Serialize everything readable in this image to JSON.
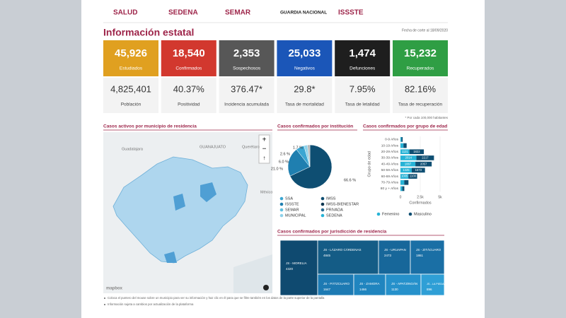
{
  "header": {
    "logos": [
      "SALUD",
      "SEDENA",
      "SEMAR",
      "GUARDIA NACIONAL",
      "ISSSTE"
    ]
  },
  "title": "Información estatal",
  "date": "Fecha de corte al 18/09/2020",
  "cards": [
    {
      "value": "45,926",
      "label": "Estudiados",
      "color": "#e0a020"
    },
    {
      "value": "18,540",
      "label": "Confirmados",
      "color": "#d2382e"
    },
    {
      "value": "2,353",
      "label": "Sospechosos",
      "color": "#575757"
    },
    {
      "value": "25,033",
      "label": "Negativos",
      "color": "#1b56b8"
    },
    {
      "value": "1,474",
      "label": "Defunciones",
      "color": "#1e1e1e"
    },
    {
      "value": "15,232",
      "label": "Recuperados",
      "color": "#2f9e44"
    }
  ],
  "stats": [
    {
      "value": "4,825,401",
      "label": "Población"
    },
    {
      "value": "40.37%",
      "label": "Positividad"
    },
    {
      "value": "376.47*",
      "label": "Incidencia acumulada"
    },
    {
      "value": "29.8*",
      "label": "Tasa de mortalidad"
    },
    {
      "value": "7.95%",
      "label": "Tasa de letalidad"
    },
    {
      "value": "82.16%",
      "label": "Tasa de recuperación"
    }
  ],
  "footnote": "* Por cada 100,000 habitantes",
  "map": {
    "title": "Casos activos por municipio de residencia",
    "places": [
      "Guadalajara",
      "GUANAJUATO",
      "Querétaro",
      "México"
    ],
    "attribution": "mapbox"
  },
  "institutions": {
    "title": "Casos confirmados por institución",
    "slices": [
      {
        "value": 66.6,
        "label": "66.6 %",
        "color": "#0e4e72"
      },
      {
        "value": 21.0,
        "label": "21.0 %",
        "color": "#1f7fb0"
      },
      {
        "value": 6.0,
        "label": "6.0 %",
        "color": "#3ba6d2"
      },
      {
        "value": 2.6,
        "label": "2.6 %",
        "color": "#8fd2ea"
      },
      {
        "value": 1.7,
        "label": "1.7 %",
        "color": "#b5b5b5"
      }
    ],
    "legend": [
      {
        "name": "SSA",
        "color": "#3ba6d2"
      },
      {
        "name": "IMSS",
        "color": "#0e4e72"
      },
      {
        "name": "ISSSTE",
        "color": "#1f7fb0"
      },
      {
        "name": "IMSS-BIENESTAR",
        "color": "#0b3550"
      },
      {
        "name": "SEMAR",
        "color": "#5fc0e0"
      },
      {
        "name": "PRIVADA",
        "color": "#2a6d94"
      },
      {
        "name": "MUNICIPAL",
        "color": "#8fd2ea"
      },
      {
        "name": "SEDENA",
        "color": "#27b3d6"
      }
    ]
  },
  "age": {
    "title": "Casos confirmados por grupo de edad",
    "categories": [
      "0-9 Años",
      "10-19 Años",
      "20-29 Años",
      "30-39 Años",
      "40-49 Años",
      "50-59 Años",
      "60-69 Años",
      "70-79 Años",
      "80 y + Años"
    ],
    "series": [
      {
        "name": "Femenino",
        "color": "#27b3d6",
        "values": [
          130,
          380,
          1131,
          2014,
          1887,
          1425,
          1005,
          480,
          230
        ]
      },
      {
        "name": "Masculino",
        "color": "#0e4e72",
        "values": [
          150,
          400,
          1822,
          2217,
          2057,
          1673,
          1100,
          530,
          260
        ]
      }
    ],
    "xlim": [
      0,
      5000
    ],
    "xticks": [
      0,
      {
        "value": 2500,
        "label": "2.5k"
      },
      {
        "value": 5000,
        "label": "5k"
      }
    ],
    "xlabel": "Confirmados",
    "ylabel": "Grupo de edad"
  },
  "jurisdictions": {
    "title": "Casos confirmados por jurisdicción de residencia",
    "cells": [
      {
        "name": "JS - MORELIA",
        "value": "4320",
        "color": "#0f4a70"
      },
      {
        "name": "JS - LÁZARO CÁRDENAS",
        "value": "4845",
        "color": "#145c86"
      },
      {
        "name": "JS - URUAPAN",
        "value": "2473",
        "color": "#17679a"
      },
      {
        "name": "JS - ZITÁCUARO",
        "value": "1861",
        "color": "#1a6fa5"
      },
      {
        "name": "JS - PÁTZCUARO",
        "value": "1647",
        "color": "#1d7ab3"
      },
      {
        "name": "JS - ZAMORA",
        "value": "1466",
        "color": "#2085bf"
      },
      {
        "name": "JS - APATZINGÁN",
        "value": "1130",
        "color": "#2691cb"
      },
      {
        "name": "JS - LA PIEDAD",
        "value": "896",
        "color": "#2f9fd6"
      }
    ]
  },
  "notes": [
    "Coloca el puntero del mouse sobre un municipio para ver su información y haz clic en él para que se filtre también en los datos de la parte superior de la pantalla",
    "Información sujeta a cambios por actualización de la plataforma"
  ]
}
